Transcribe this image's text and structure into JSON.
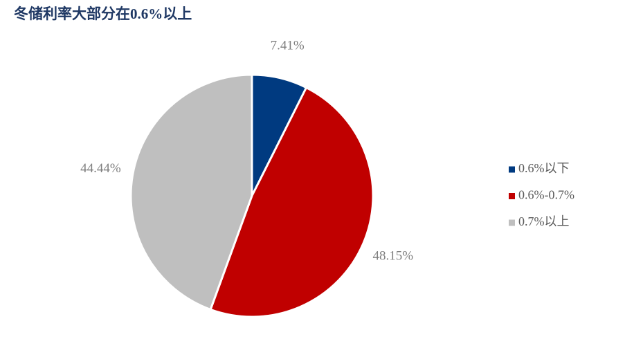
{
  "chart_data": {
    "type": "pie",
    "title": "冬储利率大部分在0.6%以上",
    "categories": [
      "0.6%以下",
      "0.6%-0.7%",
      "0.7%以上"
    ],
    "values": [
      7.41,
      48.15,
      44.44
    ],
    "value_labels": [
      "7.41%",
      "48.15%",
      "44.44%"
    ],
    "colors": [
      "#003a80",
      "#c00000",
      "#bfbfbf"
    ],
    "legend": "right"
  }
}
